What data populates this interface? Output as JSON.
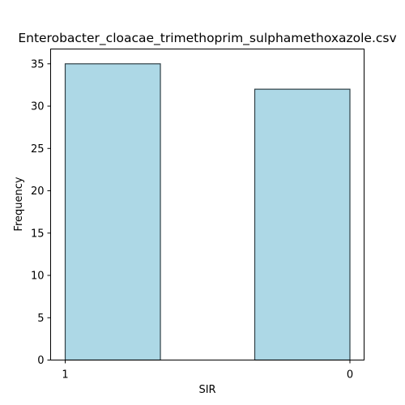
{
  "chart_data": {
    "type": "bar",
    "title": "Enterobacter_cloacae_trimethoprim_sulphamethoxazole.csv",
    "xlabel": "SIR",
    "ylabel": "Frequency",
    "categories": [
      "1",
      "0"
    ],
    "values": [
      35,
      32
    ],
    "ylim": [
      0,
      36.75
    ],
    "yticks": [
      0,
      5,
      10,
      15,
      20,
      25,
      30,
      35
    ],
    "grid": false,
    "bar_color": "#add8e6",
    "edge_color": "#000000"
  }
}
